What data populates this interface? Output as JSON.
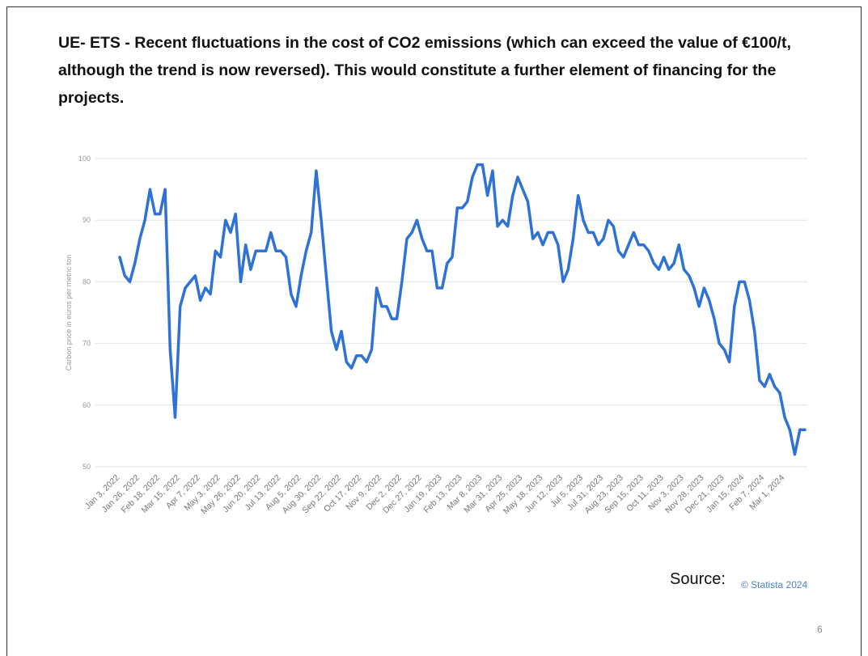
{
  "chart_data": {
    "type": "line",
    "title": "UE- ETS - Recent fluctuations in the cost of CO2 emissions (which can exceed the value of €100/t, although the trend is now reversed). This would constitute a further element of financing for the projects.",
    "y_label": "Carbon price in euros per metric ton",
    "color": "#2f72d6",
    "grid": true,
    "ylim": [
      50,
      100
    ],
    "yticks": [
      50,
      60,
      70,
      80,
      90,
      100
    ],
    "categories": [
      "Jan 3, 2022",
      null,
      null,
      null,
      "Jan 26, 2022",
      null,
      null,
      null,
      "Feb 18, 2022",
      null,
      null,
      null,
      "Mar 15, 2022",
      null,
      null,
      null,
      "Apr 7, 2022",
      null,
      null,
      null,
      "May 3, 2022",
      null,
      null,
      null,
      "May 26, 2022",
      null,
      null,
      null,
      "Jun 20, 2022",
      null,
      null,
      null,
      "Jul 13, 2022",
      null,
      null,
      null,
      "Aug 5, 2022",
      null,
      null,
      null,
      "Aug 30, 2022",
      null,
      null,
      null,
      "Sep 22, 2022",
      null,
      null,
      null,
      "Oct 17, 2022",
      null,
      null,
      null,
      "Nov 9, 2022",
      null,
      null,
      null,
      "Dec 2, 2022",
      null,
      null,
      null,
      "Dec 27, 2022",
      null,
      null,
      null,
      "Jan 19, 2023",
      null,
      null,
      null,
      "Feb 13, 2023",
      null,
      null,
      null,
      "Mar 8, 2023",
      null,
      null,
      null,
      "Mar 31, 2023",
      null,
      null,
      null,
      "Apr 25, 2023",
      null,
      null,
      null,
      "May 18, 2023",
      null,
      null,
      null,
      "Jun 12, 2023",
      null,
      null,
      null,
      "Jul 5, 2023",
      null,
      null,
      null,
      "Jul 31, 2023",
      null,
      null,
      null,
      "Aug 23, 2023",
      null,
      null,
      null,
      "Sep 15, 2023",
      null,
      null,
      null,
      "Oct 11, 2023",
      null,
      null,
      null,
      "Nov 3, 2023",
      null,
      null,
      null,
      "Nov 28, 2023",
      null,
      null,
      null,
      "Dec 21, 2023",
      null,
      null,
      null,
      "Jan 15, 2024",
      null,
      null,
      null,
      "Feb 7, 2024",
      null,
      null,
      null,
      "Mar 1, 2024",
      null,
      null,
      null,
      null
    ],
    "values": [
      84,
      81,
      80,
      83,
      87,
      90,
      95,
      91,
      91,
      95,
      69,
      58,
      76,
      79,
      80,
      81,
      77,
      79,
      78,
      85,
      84,
      90,
      88,
      91,
      80,
      86,
      82,
      85,
      85,
      85,
      88,
      85,
      85,
      84,
      78,
      76,
      81,
      85,
      88,
      98,
      90,
      81,
      72,
      69,
      72,
      67,
      66,
      68,
      68,
      67,
      69,
      79,
      76,
      76,
      74,
      74,
      80,
      87,
      88,
      90,
      87,
      85,
      85,
      79,
      79,
      83,
      84,
      92,
      92,
      93,
      97,
      99,
      99,
      94,
      98,
      89,
      90,
      89,
      94,
      97,
      95,
      93,
      87,
      88,
      86,
      88,
      88,
      86,
      80,
      82,
      87,
      94,
      90,
      88,
      88,
      86,
      87,
      90,
      89,
      85,
      84,
      86,
      88,
      86,
      86,
      85,
      83,
      82,
      84,
      82,
      83,
      86,
      82,
      81,
      79,
      76,
      79,
      77,
      74,
      70,
      69,
      67,
      76,
      80,
      80,
      77,
      72,
      64,
      63,
      65,
      63,
      62,
      58,
      56,
      52,
      56,
      56
    ]
  },
  "source_label": "Source:",
  "credit": "© Statista 2024",
  "page_number": "6"
}
